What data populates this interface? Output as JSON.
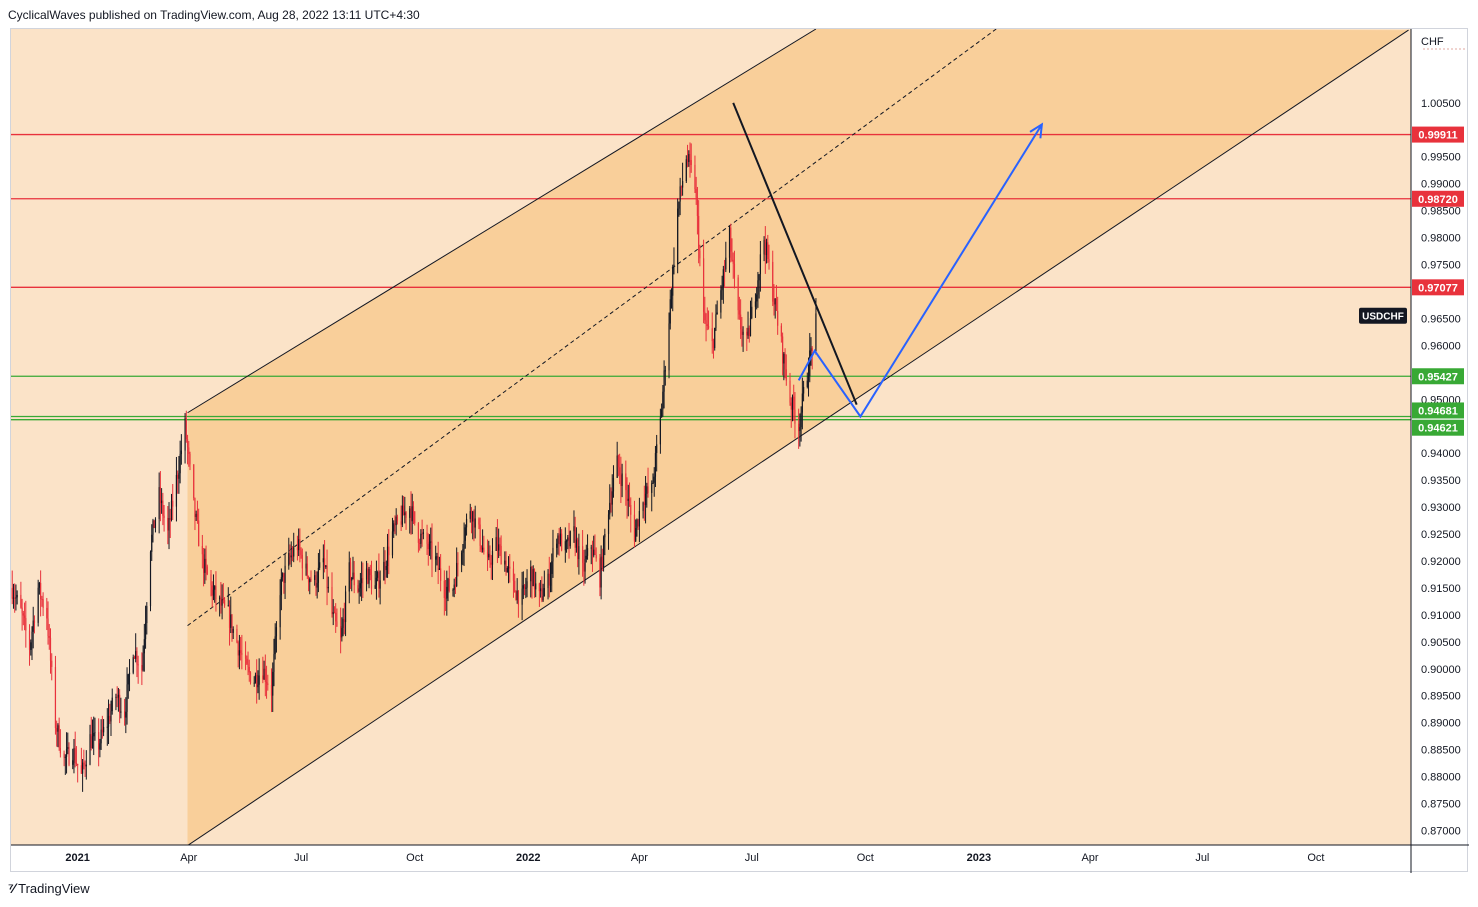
{
  "header": {
    "attribution": "CyclicalWaves published on TradingView.com, Aug 28, 2022 13:11 UTC+4:30"
  },
  "footer": {
    "brand": "TradingView",
    "logo_icon": "tradingview-logo-icon"
  },
  "colors": {
    "background": "#fbe3c8",
    "channel_fill": "#f9cf9a",
    "resistance": "#e8323c",
    "support": "#38a935",
    "projection": "#2962ff",
    "candle_up": "#131722",
    "candle_down": "#e8323c"
  },
  "chart_data": {
    "type": "candlestick",
    "symbol": "USDCHF",
    "currency_label": "CHF",
    "x_ticks": [
      {
        "date": "2021-01-01",
        "label": "2021",
        "bold": true
      },
      {
        "date": "2021-04-01",
        "label": "Apr"
      },
      {
        "date": "2021-07-01",
        "label": "Jul"
      },
      {
        "date": "2021-10-01",
        "label": "Oct"
      },
      {
        "date": "2022-01-01",
        "label": "2022",
        "bold": true
      },
      {
        "date": "2022-04-01",
        "label": "Apr"
      },
      {
        "date": "2022-07-01",
        "label": "Jul"
      },
      {
        "date": "2022-10-01",
        "label": "Oct"
      },
      {
        "date": "2023-01-01",
        "label": "2023",
        "bold": true
      },
      {
        "date": "2023-04-01",
        "label": "Apr"
      },
      {
        "date": "2023-07-01",
        "label": "Jul"
      },
      {
        "date": "2023-10-01",
        "label": "Oct"
      }
    ],
    "x_range": [
      "2020-11-08",
      "2023-12-17"
    ],
    "y_range": [
      0.8673,
      1.0187
    ],
    "y_ticks": [
      "1.00500",
      "0.99500",
      "0.99000",
      "0.98500",
      "0.98000",
      "0.97500",
      "0.96500",
      "0.96000",
      "0.95000",
      "0.94000",
      "0.93500",
      "0.93000",
      "0.92500",
      "0.92000",
      "0.91500",
      "0.91000",
      "0.90500",
      "0.90000",
      "0.89500",
      "0.89000",
      "0.88500",
      "0.88000",
      "0.87500",
      "0.87000"
    ],
    "horizontal_levels": [
      {
        "value": 0.99911,
        "label": "0.99911",
        "kind": "resistance"
      },
      {
        "value": 0.9872,
        "label": "0.98720",
        "kind": "resistance"
      },
      {
        "value": 0.97077,
        "label": "0.97077",
        "kind": "resistance"
      },
      {
        "value": 0.95427,
        "label": "0.95427",
        "kind": "support"
      },
      {
        "value": 0.94681,
        "label": "0.94681",
        "kind": "support"
      },
      {
        "value": 0.94621,
        "label": "0.94621",
        "kind": "support"
      }
    ],
    "last_price_label": "USDCHF",
    "last_price": 0.9655,
    "channel": {
      "start_date": "2021-03-31",
      "lower_start": 0.8672,
      "upper_start": 0.9475,
      "lower_end_date": "2023-12-15",
      "lower_end": 1.0185,
      "upper_end_date": "2022-08-22",
      "upper_end": 1.0187,
      "mid_start": 0.908,
      "mid_end_date": "2023-01-15",
      "mid_end": 1.0187
    },
    "trendline": {
      "from": [
        "2022-06-16",
        1.005
      ],
      "to": [
        "2022-09-24",
        0.949
      ]
    },
    "projection": [
      [
        "2022-08-08",
        0.9535
      ],
      [
        "2022-08-21",
        0.959
      ],
      [
        "2022-09-27",
        0.9468
      ],
      [
        "2023-02-21",
        1.001
      ]
    ],
    "price_path": [
      [
        "2020-11-09",
        0.915
      ],
      [
        "2020-11-16",
        0.9105
      ],
      [
        "2020-11-23",
        0.904
      ],
      [
        "2020-11-30",
        0.915
      ],
      [
        "2020-12-07",
        0.91
      ],
      [
        "2020-12-14",
        0.89
      ],
      [
        "2020-12-21",
        0.883
      ],
      [
        "2020-12-28",
        0.885
      ],
      [
        "2021-01-04",
        0.88
      ],
      [
        "2021-01-11",
        0.887
      ],
      [
        "2021-01-18",
        0.886
      ],
      [
        "2021-01-25",
        0.89
      ],
      [
        "2021-02-01",
        0.895
      ],
      [
        "2021-02-08",
        0.892
      ],
      [
        "2021-02-15",
        0.904
      ],
      [
        "2021-02-22",
        0.9
      ],
      [
        "2021-03-01",
        0.923
      ],
      [
        "2021-03-08",
        0.932
      ],
      [
        "2021-03-15",
        0.925
      ],
      [
        "2021-03-22",
        0.935
      ],
      [
        "2021-03-29",
        0.945
      ],
      [
        "2021-04-05",
        0.93
      ],
      [
        "2021-04-12",
        0.92
      ],
      [
        "2021-04-19",
        0.915
      ],
      [
        "2021-04-26",
        0.912
      ],
      [
        "2021-05-03",
        0.91
      ],
      [
        "2021-05-10",
        0.905
      ],
      [
        "2021-05-17",
        0.9
      ],
      [
        "2021-05-24",
        0.898
      ],
      [
        "2021-05-31",
        0.9
      ],
      [
        "2021-06-07",
        0.896
      ],
      [
        "2021-06-14",
        0.915
      ],
      [
        "2021-06-21",
        0.92
      ],
      [
        "2021-06-28",
        0.923
      ],
      [
        "2021-07-05",
        0.918
      ],
      [
        "2021-07-12",
        0.916
      ],
      [
        "2021-07-19",
        0.92
      ],
      [
        "2021-07-26",
        0.91
      ],
      [
        "2021-08-02",
        0.905
      ],
      [
        "2021-08-09",
        0.918
      ],
      [
        "2021-08-16",
        0.915
      ],
      [
        "2021-08-23",
        0.918
      ],
      [
        "2021-08-30",
        0.915
      ],
      [
        "2021-09-06",
        0.919
      ],
      [
        "2021-09-13",
        0.925
      ],
      [
        "2021-09-20",
        0.928
      ],
      [
        "2021-09-27",
        0.93
      ],
      [
        "2021-10-04",
        0.925
      ],
      [
        "2021-10-11",
        0.923
      ],
      [
        "2021-10-18",
        0.92
      ],
      [
        "2021-10-25",
        0.915
      ],
      [
        "2021-11-01",
        0.915
      ],
      [
        "2021-11-08",
        0.923
      ],
      [
        "2021-11-15",
        0.93
      ],
      [
        "2021-11-22",
        0.925
      ],
      [
        "2021-11-29",
        0.919
      ],
      [
        "2021-12-06",
        0.923
      ],
      [
        "2021-12-13",
        0.92
      ],
      [
        "2021-12-20",
        0.915
      ],
      [
        "2021-12-27",
        0.913
      ],
      [
        "2022-01-03",
        0.918
      ],
      [
        "2022-01-10",
        0.913
      ],
      [
        "2022-01-17",
        0.916
      ],
      [
        "2022-01-24",
        0.925
      ],
      [
        "2022-01-31",
        0.922
      ],
      [
        "2022-02-07",
        0.925
      ],
      [
        "2022-02-14",
        0.918
      ],
      [
        "2022-02-21",
        0.923
      ],
      [
        "2022-02-28",
        0.917
      ],
      [
        "2022-03-07",
        0.93
      ],
      [
        "2022-03-14",
        0.938
      ],
      [
        "2022-03-21",
        0.933
      ],
      [
        "2022-03-28",
        0.925
      ],
      [
        "2022-04-04",
        0.932
      ],
      [
        "2022-04-11",
        0.933
      ],
      [
        "2022-04-18",
        0.946
      ],
      [
        "2022-04-25",
        0.965
      ],
      [
        "2022-05-02",
        0.985
      ],
      [
        "2022-05-09",
        0.995
      ],
      [
        "2022-05-16",
        0.99
      ],
      [
        "2022-05-23",
        0.965
      ],
      [
        "2022-05-30",
        0.96
      ],
      [
        "2022-06-06",
        0.97
      ],
      [
        "2022-06-13",
        0.98
      ],
      [
        "2022-06-20",
        0.965
      ],
      [
        "2022-06-27",
        0.96
      ],
      [
        "2022-07-04",
        0.97
      ],
      [
        "2022-07-11",
        0.98
      ],
      [
        "2022-07-18",
        0.97
      ],
      [
        "2022-07-25",
        0.96
      ],
      [
        "2022-08-01",
        0.95
      ],
      [
        "2022-08-08",
        0.945
      ],
      [
        "2022-08-15",
        0.955
      ],
      [
        "2022-08-22",
        0.964
      ]
    ]
  }
}
